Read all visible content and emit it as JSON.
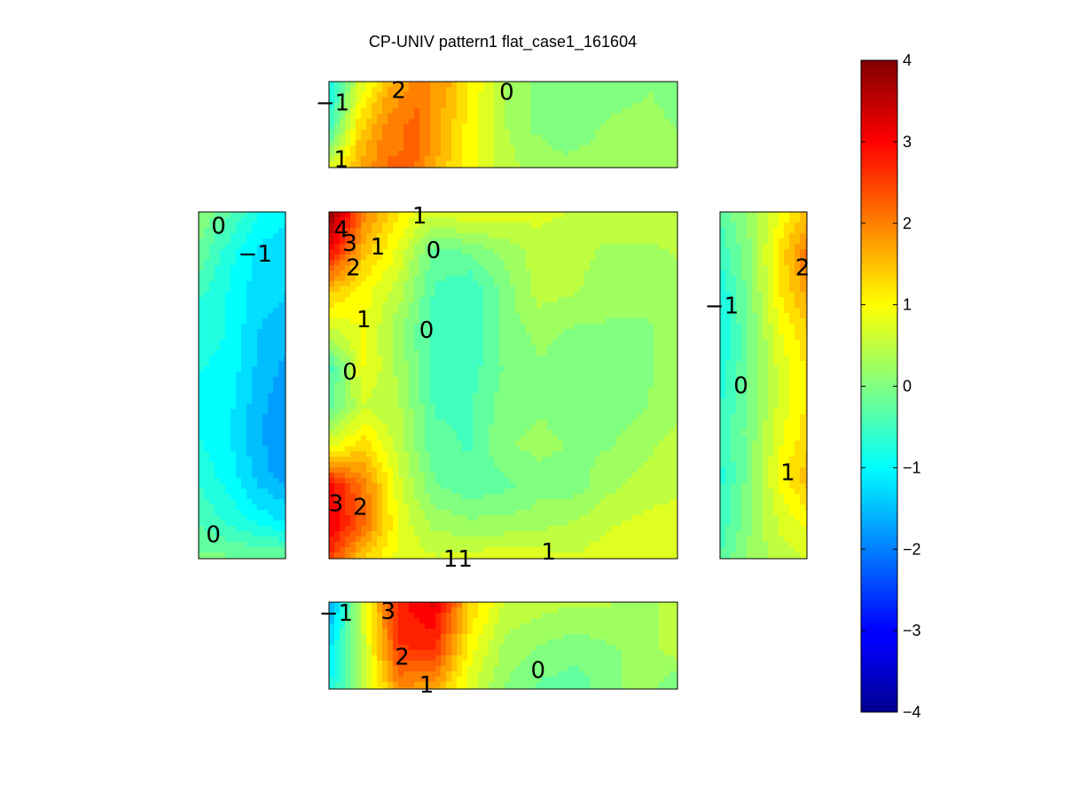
{
  "chart_data": {
    "type": "heatmap",
    "title": "CP-UNIV pattern1 flat_case1_161604",
    "colormap": "jet",
    "colorbar": {
      "range": [
        -4,
        4
      ],
      "ticks": [
        "4",
        "3",
        "2",
        "1",
        "0",
        "−1",
        "−2",
        "−3",
        "−4"
      ],
      "placement": "right"
    },
    "panels": [
      {
        "name": "top",
        "rows": [
          [
            -1.0,
            0.6,
            1.5,
            2.0,
            1.7,
            1.0,
            0.4,
            0.1,
            0.0,
            0.0,
            0.0,
            0.1,
            0.0
          ],
          [
            -0.6,
            1.2,
            2.0,
            2.2,
            1.5,
            0.9,
            0.4,
            0.1,
            0.0,
            0.1,
            0.2,
            0.2,
            0.1
          ],
          [
            0.8,
            1.7,
            2.2,
            2.1,
            1.4,
            0.9,
            0.5,
            0.3,
            0.2,
            0.2,
            0.2,
            0.3,
            0.3
          ]
        ],
        "labels": [
          {
            "text": "2",
            "u": 0.2,
            "v": 0.1
          },
          {
            "text": "0",
            "u": 0.51,
            "v": 0.12
          },
          {
            "text": "−1",
            "u": 0.01,
            "v": 0.24
          },
          {
            "text": "1",
            "u": 0.035,
            "v": 0.9
          }
        ]
      },
      {
        "name": "left",
        "rows": [
          [
            0.1,
            -0.3,
            -0.9,
            -1.1
          ],
          [
            -0.2,
            -0.8,
            -1.2,
            -1.3
          ],
          [
            -0.6,
            -0.9,
            -1.3,
            -1.4
          ],
          [
            -0.8,
            -0.9,
            -1.4,
            -1.6
          ],
          [
            -0.9,
            -1.0,
            -1.5,
            -1.8
          ],
          [
            -0.9,
            -1.1,
            -1.6,
            -1.9
          ],
          [
            -0.7,
            -1.0,
            -1.5,
            -1.8
          ],
          [
            -0.4,
            -0.7,
            -1.0,
            -1.2
          ],
          [
            0.0,
            0.0,
            0.0,
            0.0
          ]
        ],
        "labels": [
          {
            "text": "0",
            "u": 0.23,
            "v": 0.04
          },
          {
            "text": "−1",
            "u": 0.65,
            "v": 0.12
          },
          {
            "text": "0",
            "u": 0.17,
            "v": 0.93
          }
        ]
      },
      {
        "name": "center",
        "rows": [
          [
            4.0,
            2.0,
            1.1,
            0.7,
            0.9,
            0.8,
            0.7,
            0.6,
            0.6,
            0.6,
            0.6
          ],
          [
            3.0,
            1.5,
            0.8,
            -0.2,
            -0.1,
            0.2,
            0.5,
            0.5,
            0.3,
            0.3,
            0.4
          ],
          [
            1.5,
            1.0,
            0.5,
            -0.4,
            -0.6,
            0.0,
            0.5,
            0.4,
            0.2,
            0.2,
            0.3
          ],
          [
            0.6,
            0.9,
            0.2,
            -0.5,
            -0.6,
            0.0,
            0.2,
            0.1,
            0.1,
            0.1,
            0.2
          ],
          [
            -0.5,
            0.9,
            0.3,
            -0.5,
            -0.5,
            -0.1,
            0.1,
            0.0,
            0.0,
            0.1,
            0.2
          ],
          [
            -0.2,
            0.6,
            0.4,
            -0.4,
            -0.4,
            0.0,
            0.1,
            0.0,
            0.0,
            0.1,
            0.3
          ],
          [
            0.8,
            1.3,
            0.5,
            -0.3,
            -0.4,
            0.1,
            0.2,
            0.1,
            0.1,
            0.3,
            0.5
          ],
          [
            3.0,
            2.0,
            0.7,
            -0.1,
            -0.3,
            -0.2,
            0.0,
            0.0,
            0.3,
            0.5,
            0.6
          ],
          [
            3.2,
            2.2,
            0.8,
            0.3,
            0.2,
            0.2,
            0.3,
            0.4,
            0.6,
            0.7,
            0.7
          ],
          [
            2.5,
            1.2,
            0.8,
            0.7,
            0.8,
            0.9,
            0.8,
            0.7,
            0.8,
            0.7,
            0.6
          ]
        ],
        "labels": [
          {
            "text": "4",
            "u": 0.035,
            "v": 0.05
          },
          {
            "text": "3",
            "u": 0.06,
            "v": 0.09
          },
          {
            "text": "2",
            "u": 0.07,
            "v": 0.16
          },
          {
            "text": "1",
            "u": 0.26,
            "v": 0.01
          },
          {
            "text": "1",
            "u": 0.14,
            "v": 0.1
          },
          {
            "text": "0",
            "u": 0.3,
            "v": 0.11
          },
          {
            "text": "1",
            "u": 0.1,
            "v": 0.31
          },
          {
            "text": "0",
            "u": 0.28,
            "v": 0.34
          },
          {
            "text": "0",
            "u": 0.06,
            "v": 0.46
          },
          {
            "text": "3",
            "u": 0.02,
            "v": 0.84
          },
          {
            "text": "2",
            "u": 0.09,
            "v": 0.85
          },
          {
            "text": "11",
            "u": 0.37,
            "v": 1.0
          },
          {
            "text": "1",
            "u": 0.63,
            "v": 0.98
          }
        ]
      },
      {
        "name": "right",
        "rows": [
          [
            -0.3,
            0.2,
            0.9,
            1.5
          ],
          [
            -0.6,
            0.1,
            1.2,
            2.3
          ],
          [
            -0.9,
            0.0,
            1.1,
            1.7
          ],
          [
            -0.9,
            -0.1,
            0.8,
            1.3
          ],
          [
            -0.7,
            -0.1,
            0.7,
            1.2
          ],
          [
            -0.6,
            0.0,
            0.8,
            1.3
          ],
          [
            -0.7,
            0.0,
            1.0,
            1.6
          ],
          [
            -0.6,
            0.1,
            0.7,
            1.0
          ],
          [
            -0.3,
            0.2,
            0.5,
            0.6
          ]
        ],
        "labels": [
          {
            "text": "2",
            "u": 0.95,
            "v": 0.16
          },
          {
            "text": "−1",
            "u": 0.02,
            "v": 0.27
          },
          {
            "text": "0",
            "u": 0.24,
            "v": 0.5
          },
          {
            "text": "1",
            "u": 0.78,
            "v": 0.75
          }
        ]
      },
      {
        "name": "bottom",
        "rows": [
          [
            -1.8,
            0.8,
            2.8,
            3.2,
            1.4,
            0.6,
            0.5,
            0.4,
            0.4,
            0.3,
            0.5
          ],
          [
            -1.2,
            0.6,
            2.6,
            2.7,
            1.0,
            0.3,
            0.1,
            0.0,
            0.1,
            0.2,
            0.6
          ],
          [
            -0.9,
            0.5,
            1.8,
            1.6,
            0.7,
            0.1,
            -0.2,
            -0.3,
            0.0,
            0.3,
            -0.3
          ]
        ],
        "labels": [
          {
            "text": "−1",
            "u": 0.02,
            "v": 0.12
          },
          {
            "text": "3",
            "u": 0.17,
            "v": 0.1
          },
          {
            "text": "2",
            "u": 0.21,
            "v": 0.63
          },
          {
            "text": "1",
            "u": 0.28,
            "v": 0.95
          },
          {
            "text": "0",
            "u": 0.6,
            "v": 0.78
          }
        ]
      }
    ]
  }
}
